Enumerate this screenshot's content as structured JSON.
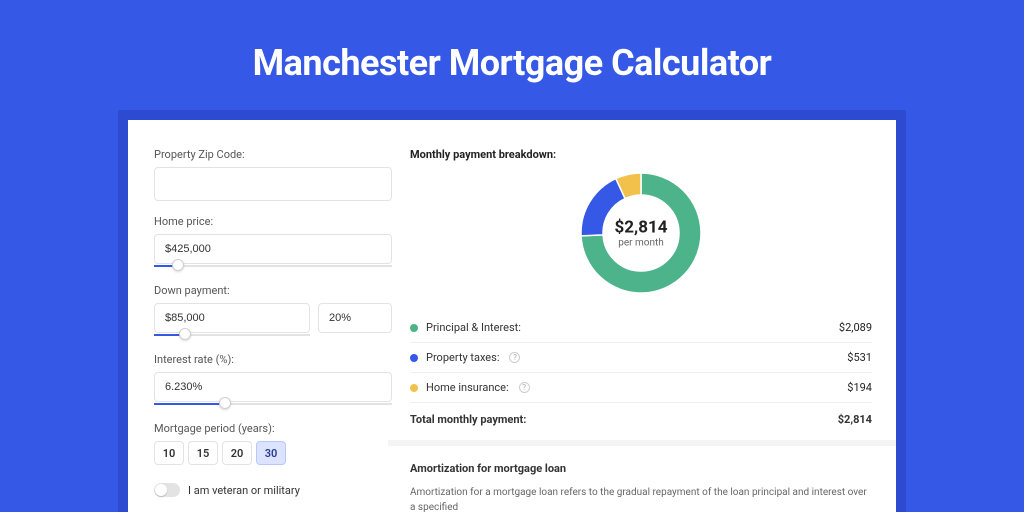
{
  "page_title": "Manchester Mortgage Calculator",
  "colors": {
    "page_bg": "#3558e6",
    "card_outer_bg": "#2c4bd1",
    "card_bg": "#ffffff",
    "accent": "#3558e6"
  },
  "form": {
    "zip_label": "Property Zip Code:",
    "zip_value": "",
    "home_price_label": "Home price:",
    "home_price_value": "$425,000",
    "home_price_slider_pct": 10,
    "down_payment_label": "Down payment:",
    "down_payment_value": "$85,000",
    "down_payment_pct_value": "20%",
    "down_payment_slider_pct": 20,
    "interest_label": "Interest rate (%):",
    "interest_value": "6.230%",
    "interest_slider_pct": 30,
    "period_label": "Mortgage period (years):",
    "periods": [
      "10",
      "15",
      "20",
      "30"
    ],
    "period_active_index": 3,
    "veteran_label": "I am veteran or military",
    "veteran_on": false
  },
  "results": {
    "breakdown_title": "Monthly payment breakdown:",
    "donut": {
      "center_value": "$2,814",
      "center_sub": "per month",
      "slices": [
        {
          "name": "principal_interest",
          "value": 2089,
          "color": "#4cb38a"
        },
        {
          "name": "property_taxes",
          "value": 531,
          "color": "#3558e6"
        },
        {
          "name": "home_insurance",
          "value": 194,
          "color": "#f2c14b"
        }
      ],
      "inner_radius": 38,
      "outer_radius": 60,
      "bg": "#ffffff"
    },
    "legend": [
      {
        "label": "Principal & Interest:",
        "value": "$2,089",
        "color": "#4cb38a",
        "info": false
      },
      {
        "label": "Property taxes:",
        "value": "$531",
        "color": "#3558e6",
        "info": true
      },
      {
        "label": "Home insurance:",
        "value": "$194",
        "color": "#f2c14b",
        "info": true
      }
    ],
    "total_label": "Total monthly payment:",
    "total_value": "$2,814"
  },
  "amortization": {
    "title": "Amortization for mortgage loan",
    "text": "Amortization for a mortgage loan refers to the gradual repayment of the loan principal and interest over a specified"
  }
}
